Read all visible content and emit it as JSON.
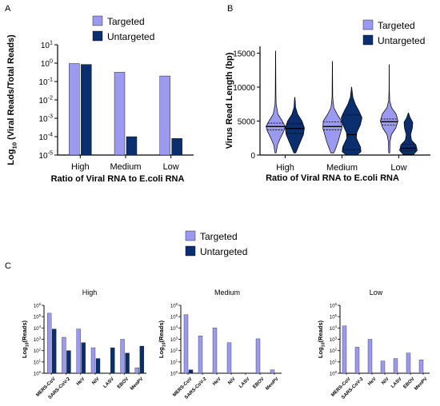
{
  "colors": {
    "targeted": "#9b99f0",
    "untargeted": "#0b2f6e",
    "axis": "#000000"
  },
  "legend": {
    "targeted": "Targeted",
    "untargeted": "Untargeted"
  },
  "chart_data": [
    {
      "panel": "A",
      "type": "bar",
      "scale": "log10",
      "ylabel_prefix": "Log",
      "ylabel_sub": "10",
      "ylabel_rest": " (Viral Reads/Total Reads)",
      "xlabel": "Ratio of Viral RNA to E.coli RNA",
      "categories": [
        "High",
        "Medium",
        "Low"
      ],
      "ylim": [
        1e-05,
        10
      ],
      "yticks": [
        {
          "value": 10,
          "exp": "1"
        },
        {
          "value": 1,
          "exp": "0"
        },
        {
          "value": 0.1,
          "exp": "-1"
        },
        {
          "value": 0.01,
          "exp": "-2"
        },
        {
          "value": 0.001,
          "exp": "-3"
        },
        {
          "value": 0.0001,
          "exp": "-4"
        },
        {
          "value": 1e-05,
          "exp": "-5"
        }
      ],
      "series": [
        {
          "name": "Targeted",
          "values": [
            0.95,
            0.32,
            0.2
          ]
        },
        {
          "name": "Untargeted",
          "values": [
            0.85,
            0.0001,
            8e-05
          ]
        }
      ]
    },
    {
      "panel": "B",
      "type": "violin",
      "ylabel": "Virus Read Length (bp)",
      "xlabel": "Ratio of Viral RNA to E.coli RNA",
      "categories": [
        "High",
        "Medium",
        "Low"
      ],
      "ylim": [
        0,
        16000
      ],
      "yticks": [
        {
          "value": 0,
          "label": "0"
        },
        {
          "value": 5000,
          "label": "5000"
        },
        {
          "value": 10000,
          "label": "10000"
        },
        {
          "value": 15000,
          "label": "15000"
        }
      ],
      "series": [
        {
          "name": "Targeted",
          "groups": [
            {
              "min": 300,
              "max": 15300,
              "median": 4200,
              "q1": 3700,
              "q3": 4700,
              "maxw": 12,
              "profile": [
                [
                  300,
                  0.05
                ],
                [
                  1500,
                  0.2
                ],
                [
                  2500,
                  0.5
                ],
                [
                  3500,
                  0.85
                ],
                [
                  4200,
                  1.0
                ],
                [
                  5000,
                  0.7
                ],
                [
                  6000,
                  0.25
                ],
                [
                  7500,
                  0.06
                ],
                [
                  9000,
                  0.03
                ],
                [
                  15300,
                  0.01
                ]
              ]
            },
            {
              "min": 300,
              "max": 13800,
              "median": 4200,
              "q1": 3700,
              "q3": 4900,
              "maxw": 12,
              "profile": [
                [
                  300,
                  0.15
                ],
                [
                  1000,
                  0.35
                ],
                [
                  2000,
                  0.6
                ],
                [
                  3000,
                  0.8
                ],
                [
                  4000,
                  1.0
                ],
                [
                  5000,
                  0.95
                ],
                [
                  6000,
                  0.5
                ],
                [
                  7000,
                  0.15
                ],
                [
                  8500,
                  0.03
                ],
                [
                  13800,
                  0.01
                ]
              ]
            },
            {
              "min": 300,
              "max": 13300,
              "median": 4900,
              "q1": 4400,
              "q3": 5300,
              "maxw": 11,
              "profile": [
                [
                  300,
                  0.05
                ],
                [
                  2000,
                  0.1
                ],
                [
                  3000,
                  0.25
                ],
                [
                  4000,
                  0.75
                ],
                [
                  5000,
                  1.0
                ],
                [
                  6000,
                  0.8
                ],
                [
                  7000,
                  0.25
                ],
                [
                  8000,
                  0.06
                ],
                [
                  9500,
                  0.02
                ],
                [
                  13300,
                  0.01
                ]
              ]
            }
          ]
        },
        {
          "name": "Untargeted",
          "groups": [
            {
              "min": 300,
              "max": 8500,
              "median": 3900,
              "q1": 3200,
              "q3": 4600,
              "maxw": 12,
              "profile": [
                [
                  300,
                  0.1
                ],
                [
                  1000,
                  0.3
                ],
                [
                  2000,
                  0.6
                ],
                [
                  3000,
                  0.9
                ],
                [
                  4000,
                  1.0
                ],
                [
                  5000,
                  0.75
                ],
                [
                  6000,
                  0.3
                ],
                [
                  7000,
                  0.08
                ],
                [
                  8500,
                  0.02
                ]
              ]
            },
            {
              "min": 0,
              "max": 10000,
              "median": 3000,
              "q1": 800,
              "q3": 5900,
              "maxw": 13,
              "profile": [
                [
                  0,
                  0.5
                ],
                [
                  500,
                  0.9
                ],
                [
                  1200,
                  0.85
                ],
                [
                  2500,
                  0.45
                ],
                [
                  3300,
                  0.5
                ],
                [
                  4500,
                  0.85
                ],
                [
                  5500,
                  1.0
                ],
                [
                  6500,
                  0.7
                ],
                [
                  7500,
                  0.35
                ],
                [
                  8500,
                  0.12
                ],
                [
                  10000,
                  0.01
                ]
              ]
            },
            {
              "min": 100,
              "max": 6200,
              "median": 1000,
              "q1": 600,
              "q3": 1600,
              "maxw": 11,
              "profile": [
                [
                  100,
                  0.6
                ],
                [
                  700,
                  1.0
                ],
                [
                  1500,
                  0.85
                ],
                [
                  2200,
                  0.35
                ],
                [
                  3000,
                  0.25
                ],
                [
                  4000,
                  0.45
                ],
                [
                  4800,
                  0.5
                ],
                [
                  5500,
                  0.2
                ],
                [
                  6200,
                  0.02
                ]
              ]
            }
          ]
        }
      ]
    },
    {
      "panel": "C",
      "title": "High",
      "type": "bar",
      "scale": "log10",
      "ylabel_prefix": "Log",
      "ylabel_sub": "10",
      "ylabel_rest": "(Reads)",
      "categories": [
        "MERS-CoV",
        "SARS-CoV-2",
        "HeV",
        "NiV",
        "LASV",
        "EBOV",
        "MenPV"
      ],
      "ylim": [
        1,
        1000000
      ],
      "yticks": [
        {
          "value": 1,
          "exp": "0"
        },
        {
          "value": 10,
          "exp": "1"
        },
        {
          "value": 100,
          "exp": "2"
        },
        {
          "value": 1000,
          "exp": "3"
        },
        {
          "value": 10000,
          "exp": "4"
        },
        {
          "value": 100000,
          "exp": "5"
        },
        {
          "value": 1000000,
          "exp": "6"
        }
      ],
      "series": [
        {
          "name": "Targeted",
          "values": [
            200000,
            1500,
            8000,
            180,
            1,
            1000,
            3
          ]
        },
        {
          "name": "Untargeted",
          "values": [
            8000,
            100,
            500,
            20,
            180,
            60,
            250
          ]
        }
      ]
    },
    {
      "panel": "C",
      "title": "Medium",
      "type": "bar",
      "scale": "log10",
      "ylabel_prefix": "Log",
      "ylabel_sub": "10",
      "ylabel_rest": "(Reads)",
      "categories": [
        "MERS-CoV",
        "SARS-CoV-2",
        "HeV",
        "NiV",
        "LASV",
        "EBOV",
        "MenPV"
      ],
      "ylim": [
        1,
        1000000
      ],
      "yticks": [
        {
          "value": 1,
          "exp": "0"
        },
        {
          "value": 10,
          "exp": "1"
        },
        {
          "value": 100,
          "exp": "2"
        },
        {
          "value": 1000,
          "exp": "3"
        },
        {
          "value": 10000,
          "exp": "4"
        },
        {
          "value": 100000,
          "exp": "5"
        },
        {
          "value": 1000000,
          "exp": "6"
        }
      ],
      "series": [
        {
          "name": "Targeted",
          "values": [
            150000,
            2000,
            10000,
            500,
            1,
            1100,
            2
          ]
        },
        {
          "name": "Untargeted",
          "values": [
            2,
            1,
            1,
            1,
            1,
            1,
            1
          ]
        }
      ]
    },
    {
      "panel": "C",
      "title": "Low",
      "type": "bar",
      "scale": "log10",
      "ylabel_prefix": "Log",
      "ylabel_sub": "10",
      "ylabel_rest": "(Reads)",
      "categories": [
        "MERS-CoV",
        "SARS-CoV-2",
        "HeV",
        "NiV",
        "LASV",
        "EBOV",
        "MenPV"
      ],
      "ylim": [
        1,
        1000000
      ],
      "yticks": [
        {
          "value": 1,
          "exp": "0"
        },
        {
          "value": 10,
          "exp": "1"
        },
        {
          "value": 100,
          "exp": "2"
        },
        {
          "value": 1000,
          "exp": "3"
        },
        {
          "value": 10000,
          "exp": "4"
        },
        {
          "value": 100000,
          "exp": "5"
        },
        {
          "value": 1000000,
          "exp": "6"
        }
      ],
      "series": [
        {
          "name": "Targeted",
          "values": [
            15000,
            200,
            1000,
            12,
            20,
            60,
            15
          ]
        },
        {
          "name": "Untargeted",
          "values": [
            1,
            1,
            1,
            1,
            1,
            1,
            1
          ]
        }
      ]
    }
  ]
}
